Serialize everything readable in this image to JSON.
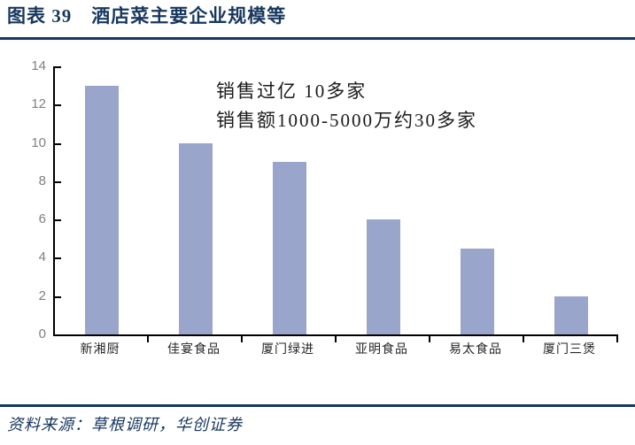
{
  "header": {
    "title": "图表 39　酒店菜主要企业规模等"
  },
  "footer": {
    "source": "资料来源：草根调研，华创证券"
  },
  "chart_data": {
    "type": "bar",
    "title": "图表 39　酒店菜主要企业规模等",
    "categories": [
      "新湘厨",
      "佳宴食品",
      "厦门绿进",
      "亚明食品",
      "易太食品",
      "厦门三煲"
    ],
    "values": [
      13,
      10,
      9,
      6,
      4.5,
      2
    ],
    "xlabel": "",
    "ylabel": "",
    "ylim": [
      0,
      14
    ],
    "yticks": [
      0,
      2,
      4,
      6,
      8,
      10,
      12,
      14
    ],
    "grid": false,
    "legend": "none",
    "bar_color": "#9AA5CB",
    "annotation_lines": [
      "销售过亿  10多家",
      "销售额1000-5000万约30多家"
    ]
  },
  "colors": {
    "accent_navy": "#17375E",
    "bar": "#9AA5CB",
    "axis": "#000000",
    "y_tick_label": "#808080",
    "annotation_text": "#1A1A1A"
  }
}
